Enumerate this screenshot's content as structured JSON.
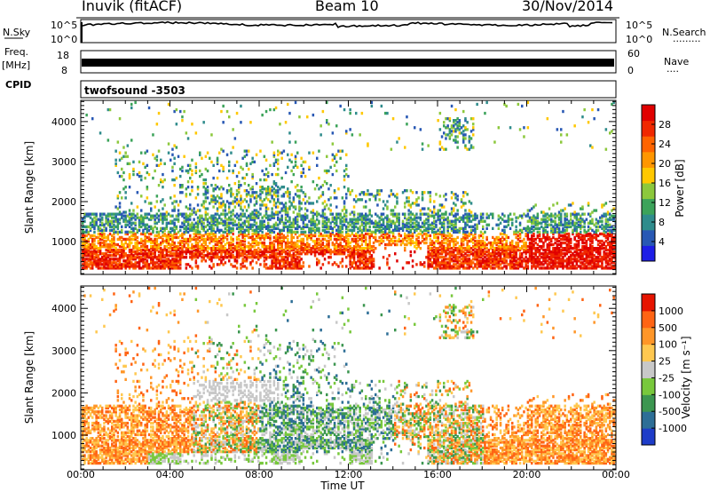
{
  "header": {
    "station": "Inuvik (fitACF)",
    "beam": "Beam 10",
    "date": "30/Nov/2014"
  },
  "noise_panel": {
    "left_label": "N.Sky",
    "right_label": "N.Search",
    "right_legend": "·········",
    "left_ticks": [
      "10^5",
      "10^0"
    ],
    "right_ticks": [
      "10^5",
      "10^0"
    ]
  },
  "freq_panel": {
    "label_top": "Freq.",
    "label_unit": "[MHz]",
    "left_ticks": [
      "18",
      "8"
    ],
    "right_ticks": [
      "60",
      "0"
    ],
    "right_label": "Nave",
    "right_legend": "····"
  },
  "cpid_panel": {
    "label": "CPID",
    "text": "twofsound -3503"
  },
  "chart_data": [
    {
      "type": "heatmap",
      "title": "",
      "quantity": "Power",
      "xlabel": "Time UT",
      "ylabel": "Slant Range [km]",
      "xlim_hours": [
        0,
        24
      ],
      "ylim": [
        180,
        4530
      ],
      "y_ticks": [
        1000,
        2000,
        3000,
        4000
      ],
      "x_ticks": [
        "00:00",
        "04:00",
        "08:00",
        "12:00",
        "16:00",
        "20:00",
        "00:00"
      ],
      "colorbar": {
        "label": "Power [dB]",
        "ticks": [
          4,
          8,
          12,
          16,
          20,
          24,
          28
        ],
        "range": [
          0,
          32
        ],
        "colors": [
          "#1e1ee6",
          "#2858b4",
          "#2f8c8c",
          "#3ca35a",
          "#8cc83c",
          "#ffc800",
          "#ff9600",
          "#ff6400",
          "#f02800",
          "#e00000"
        ]
      },
      "description_bands": [
        {
          "t_start": 0,
          "t_end": 24,
          "range_low": 300,
          "range_high": 1700,
          "level": "strong"
        },
        {
          "t_start": 1.5,
          "t_end": 12,
          "range_low": 1700,
          "range_high": 3200,
          "level": "patchy"
        },
        {
          "t_start": 16,
          "t_end": 17.5,
          "range_low": 3400,
          "range_high": 4000,
          "level": "weak"
        }
      ]
    },
    {
      "type": "heatmap",
      "title": "",
      "quantity": "Velocity",
      "xlabel": "Time UT",
      "ylabel": "Slant Range [km]",
      "xlim_hours": [
        0,
        24
      ],
      "ylim": [
        180,
        4530
      ],
      "y_ticks": [
        1000,
        2000,
        3000,
        4000
      ],
      "x_ticks": [
        "00:00",
        "04:00",
        "08:00",
        "12:00",
        "16:00",
        "20:00",
        "00:00"
      ],
      "colorbar": {
        "label": "Velocity [m s⁻¹]",
        "ticks": [
          "1000",
          "500",
          "100",
          "25",
          "-25",
          "-100",
          "-500",
          "-1000"
        ],
        "colors": [
          "#1e3cc8",
          "#2d6e96",
          "#3c9650",
          "#78c83c",
          "#c8c8c8",
          "#ffc850",
          "#ff9628",
          "#ff6414",
          "#e61400"
        ]
      }
    }
  ]
}
